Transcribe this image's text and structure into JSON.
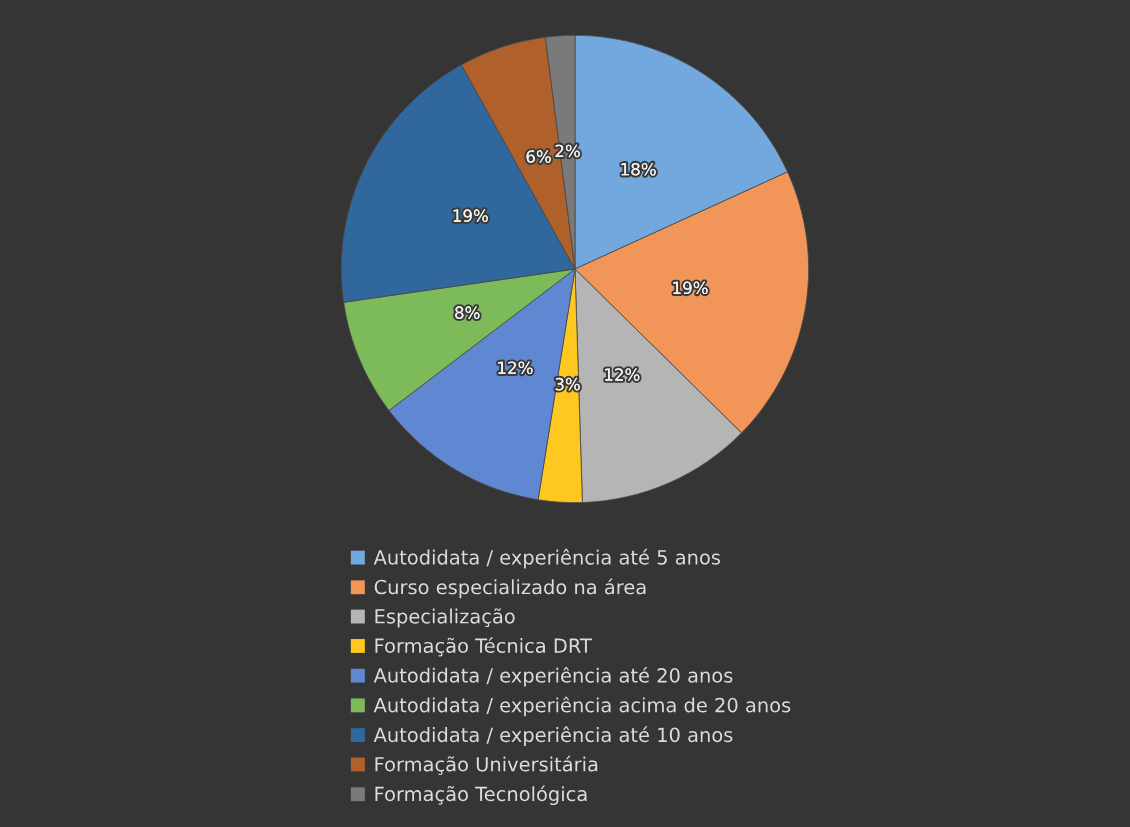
{
  "chart_data": {
    "type": "pie",
    "categories": [
      "Autodidata / experiência até 5 anos",
      "Curso especializado na área",
      "Especialização",
      "Formação Técnica DRT",
      "Autodidata / experiência até 20 anos",
      "Autodidata / experiência acima de 20 anos",
      "Autodidata / experiência até 10 anos",
      "Formação Universitária",
      "Formação Tecnológica"
    ],
    "values": [
      18,
      19,
      12,
      3,
      12,
      8,
      19,
      6,
      2
    ],
    "value_labels": [
      "18%",
      "19%",
      "12%",
      "3%",
      "12%",
      "8%",
      "19%",
      "6%",
      "2%"
    ],
    "colors": [
      "#72a8dd",
      "#f19558",
      "#b5b5b5",
      "#ffc820",
      "#5f87d2",
      "#7dbb5a",
      "#30679d",
      "#b0602a",
      "#7a7a7a"
    ],
    "legend": "bottom"
  }
}
